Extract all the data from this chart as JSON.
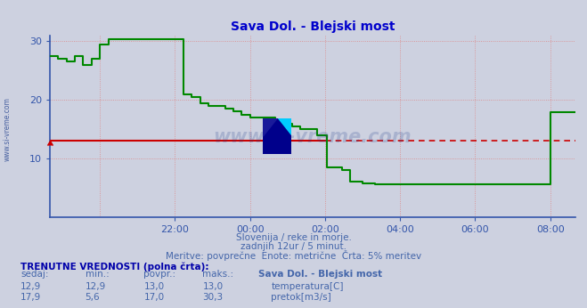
{
  "title": "Sava Dol. - Blejski most",
  "title_color": "#0000cc",
  "bg_color": "#cdd1e0",
  "plot_bg_color": "#cdd1e0",
  "grid_color": "#dd8888",
  "axis_color": "#3355aa",
  "temp_color": "#cc0000",
  "flow_color": "#008800",
  "temp_value": 13.0,
  "xmin": -720,
  "xmax": 540,
  "ymin": 0,
  "ymax": 31,
  "ytick_vals": [
    10,
    20,
    30
  ],
  "xtick_labels": [
    "22:00",
    "00:00",
    "02:00",
    "04:00",
    "06:00",
    "08:00"
  ],
  "xtick_positions": [
    -420,
    -240,
    -60,
    120,
    300,
    480
  ],
  "xgrid_positions": [
    -600,
    -420,
    -240,
    -60,
    120,
    300,
    480
  ],
  "subtitle1": "Slovenija / reke in morje.",
  "subtitle2": "zadnjih 12ur / 5 minut.",
  "subtitle3": "Meritve: povprečne  Enote: metrične  Črta: 5% meritev",
  "subtitle_color": "#4466aa",
  "table_header": "TRENUTNE VREDNOSTI (polna črta):",
  "col_headers": [
    "sedaj:",
    "min.:",
    "povpr.:",
    "maks.:",
    "Sava Dol. - Blejski most"
  ],
  "row1_vals": [
    "12,9",
    "12,9",
    "13,0",
    "13,0"
  ],
  "row2_vals": [
    "17,9",
    "5,6",
    "17,0",
    "30,3"
  ],
  "legend1": "temperatura[C]",
  "legend2": "pretok[m3/s]",
  "legend1_color": "#cc0000",
  "legend2_color": "#008800",
  "watermark": "www.si-vreme.com",
  "watermark_color": "#1a3a8a",
  "flow_x": [
    -720,
    -700,
    -680,
    -660,
    -640,
    -620,
    -600,
    -580,
    -550,
    -480,
    -420,
    -400,
    -380,
    -360,
    -340,
    -320,
    -300,
    -280,
    -260,
    -240,
    -220,
    -200,
    -180,
    -160,
    -140,
    -120,
    -100,
    -80,
    -60,
    -55,
    -40,
    -20,
    0,
    30,
    60,
    90,
    120,
    200,
    480,
    500,
    540
  ],
  "flow_y": [
    27.5,
    27.0,
    26.5,
    27.5,
    26.0,
    27.0,
    29.5,
    30.3,
    30.3,
    30.3,
    30.3,
    21.0,
    20.5,
    19.5,
    19.0,
    19.0,
    18.5,
    18.0,
    17.5,
    17.0,
    17.0,
    17.0,
    16.5,
    16.0,
    15.5,
    15.0,
    15.0,
    14.0,
    14.0,
    8.5,
    8.5,
    8.0,
    6.0,
    5.7,
    5.6,
    5.6,
    5.6,
    5.6,
    17.9,
    17.9,
    17.9
  ]
}
